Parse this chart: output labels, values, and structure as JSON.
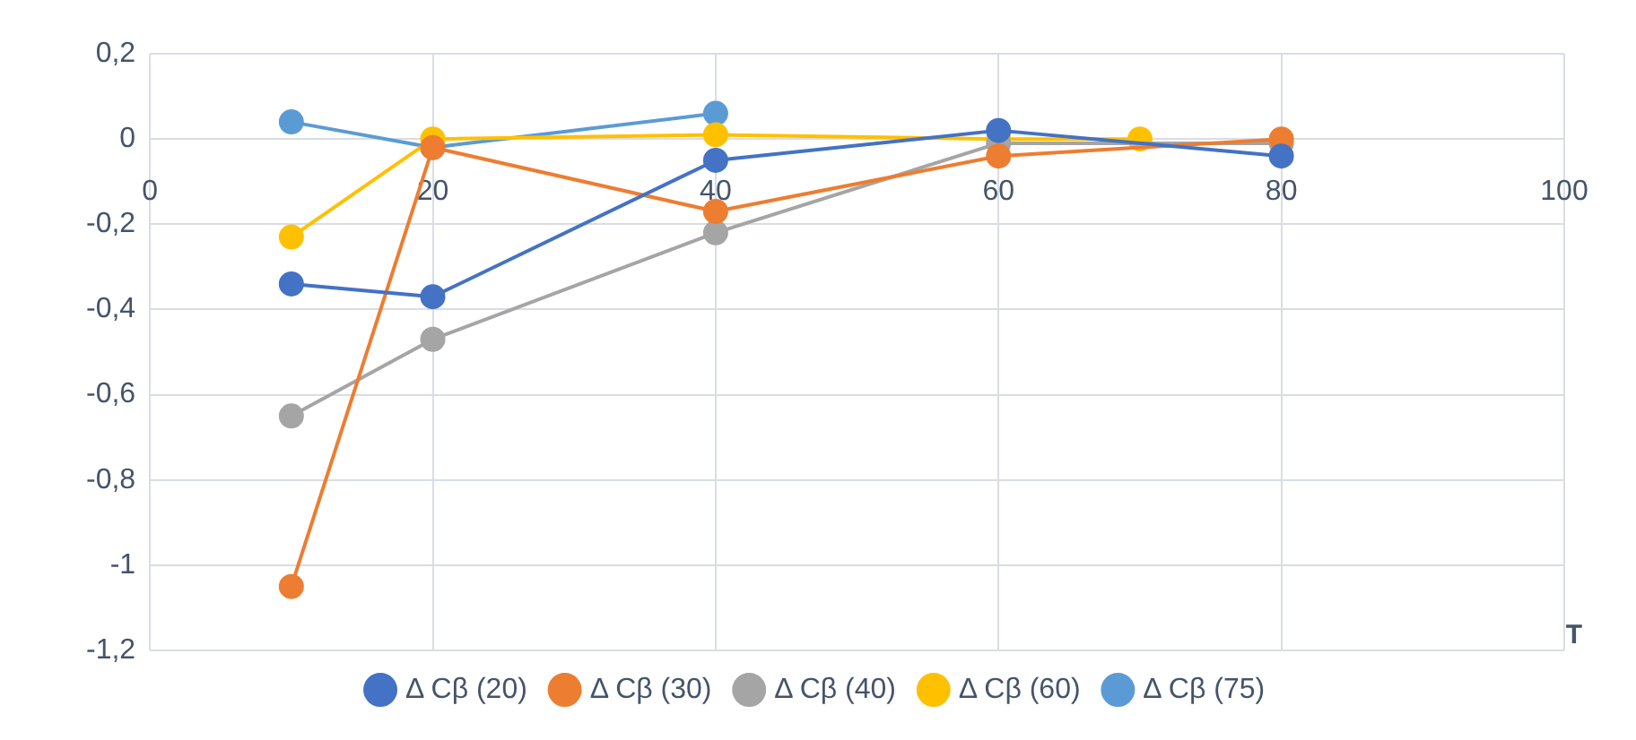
{
  "chart_data": {
    "type": "line",
    "xlabel": "T",
    "x": [
      10,
      20,
      40,
      60,
      80
    ],
    "xlim": [
      0,
      100
    ],
    "xticks": [
      0,
      20,
      40,
      60,
      80,
      100
    ],
    "ylim": [
      -1.2,
      0.2
    ],
    "yticks": [
      {
        "value": -1.2,
        "label": "-1,2"
      },
      {
        "value": -1,
        "label": "-1"
      },
      {
        "value": -0.8,
        "label": "-0,8"
      },
      {
        "value": -0.6,
        "label": "-0,6"
      },
      {
        "value": -0.4,
        "label": "-0,4"
      },
      {
        "value": -0.2,
        "label": "-0,2"
      },
      {
        "value": 0,
        "label": "0"
      },
      {
        "value": 0.2,
        "label": "0,2"
      }
    ],
    "grid": true,
    "legend": "bottom",
    "marker": "circle",
    "line_style": "solid",
    "series": [
      {
        "name": "Δ Cβ (20)",
        "color": "#4472c4",
        "values": [
          -0.34,
          -0.37,
          -0.05,
          0.02,
          -0.04
        ]
      },
      {
        "name": "Δ Cβ (30)",
        "color": "#ed7d31",
        "values": [
          -1.05,
          -0.02,
          -0.17,
          -0.04,
          0.0
        ]
      },
      {
        "name": "Δ Cβ (40)",
        "color": "#a5a5a5",
        "values": [
          -0.65,
          -0.47,
          -0.22,
          -0.01,
          -0.01
        ]
      },
      {
        "name": "Δ Cβ (60)",
        "color": "#ffc000",
        "x": [
          10,
          20,
          40,
          60,
          70
        ],
        "values": [
          -0.23,
          0.0,
          0.01,
          0.0,
          0.0
        ]
      },
      {
        "name": "Δ Cβ (75)",
        "color": "#5b9bd5",
        "x": [
          10,
          20,
          40
        ],
        "values": [
          0.04,
          -0.02,
          0.06
        ]
      }
    ]
  }
}
